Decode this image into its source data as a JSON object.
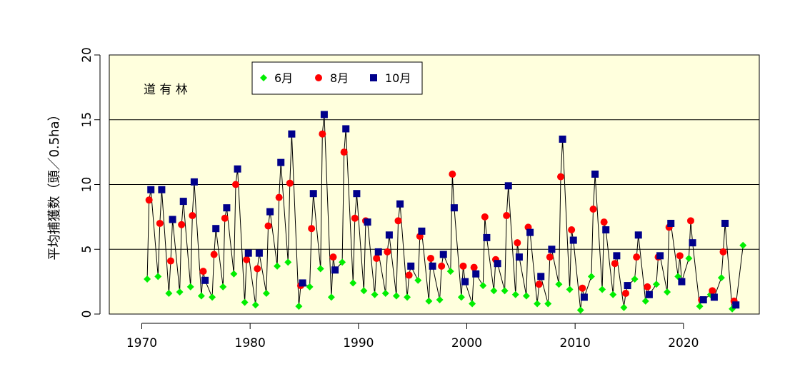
{
  "chart_data": {
    "type": "line",
    "title": "",
    "annotation": "道 有 林",
    "xlabel": "",
    "ylabel": "平均捕獲数（頭／0.5ha）",
    "xlim": [
      1967,
      2027
    ],
    "ylim": [
      0,
      20
    ],
    "x_ticks": [
      1970,
      1980,
      1990,
      2000,
      2010,
      2020
    ],
    "y_ticks": [
      0,
      5,
      10,
      15,
      20
    ],
    "y_grid": [
      5,
      10,
      15
    ],
    "legend_position": "top-left",
    "colors": {
      "jun": "#00ee00",
      "aug": "#ff0000",
      "oct": "#00008b",
      "plot_bg": "#ffffdd",
      "line": "#000000"
    },
    "series": [
      {
        "name": "6月",
        "marker": "diamond",
        "color": "#00ee00"
      },
      {
        "name": "8月",
        "marker": "circle",
        "color": "#ff0000"
      },
      {
        "name": "10月",
        "marker": "square",
        "color": "#00008b"
      }
    ],
    "years": [
      1970,
      1971,
      1972,
      1973,
      1974,
      1975,
      1976,
      1977,
      1978,
      1979,
      1980,
      1981,
      1982,
      1983,
      1984,
      1985,
      1986,
      1987,
      1988,
      1989,
      1990,
      1991,
      1992,
      1993,
      1994,
      1995,
      1996,
      1997,
      1998,
      1999,
      2000,
      2001,
      2002,
      2003,
      2004,
      2005,
      2006,
      2007,
      2008,
      2009,
      2010,
      2011,
      2012,
      2013,
      2014,
      2015,
      2016,
      2017,
      2018,
      2019,
      2020,
      2021,
      2022,
      2023,
      2024,
      2025
    ],
    "jun": [
      2.7,
      2.9,
      1.6,
      1.7,
      2.1,
      1.4,
      1.3,
      2.1,
      3.1,
      0.9,
      0.7,
      1.6,
      3.7,
      4.0,
      0.6,
      2.1,
      3.5,
      1.3,
      4.0,
      2.4,
      1.8,
      1.5,
      1.6,
      1.4,
      1.3,
      2.6,
      1.0,
      1.1,
      3.3,
      1.3,
      0.8,
      2.2,
      1.8,
      1.8,
      1.5,
      1.4,
      0.8,
      0.8,
      2.3,
      1.9,
      0.3,
      2.9,
      1.9,
      1.5,
      0.5,
      2.7,
      1.0,
      2.3,
      1.7,
      2.9,
      4.3,
      0.6,
      1.5,
      2.8,
      0.4,
      5.3
    ],
    "aug": [
      8.8,
      7.0,
      4.1,
      6.9,
      7.6,
      3.3,
      4.6,
      7.4,
      10.0,
      4.2,
      3.5,
      6.8,
      9.0,
      10.1,
      2.2,
      6.6,
      13.9,
      4.4,
      12.5,
      7.4,
      7.2,
      4.3,
      4.8,
      7.2,
      3.0,
      6.0,
      4.3,
      3.7,
      10.8,
      3.7,
      3.6,
      7.5,
      4.2,
      7.6,
      5.5,
      6.7,
      2.3,
      4.4,
      10.6,
      6.5,
      2.0,
      8.1,
      7.1,
      3.9,
      1.6,
      4.4,
      2.1,
      4.4,
      6.7,
      4.5,
      7.2,
      1.1,
      1.8,
      4.8,
      1.0
    ],
    "oct": [
      9.6,
      9.6,
      7.3,
      8.7,
      10.2,
      2.6,
      6.6,
      8.2,
      11.2,
      4.7,
      4.7,
      7.9,
      11.7,
      13.9,
      2.4,
      9.3,
      15.4,
      3.4,
      14.3,
      9.3,
      7.1,
      4.8,
      6.1,
      8.5,
      3.7,
      6.4,
      3.7,
      4.6,
      8.2,
      2.5,
      3.1,
      5.9,
      3.9,
      9.9,
      4.4,
      6.3,
      2.9,
      5.0,
      13.5,
      5.7,
      1.3,
      10.8,
      6.5,
      4.5,
      2.2,
      6.1,
      1.5,
      4.5,
      7.0,
      2.5,
      5.5,
      1.1,
      1.3,
      7.0,
      0.7
    ]
  }
}
